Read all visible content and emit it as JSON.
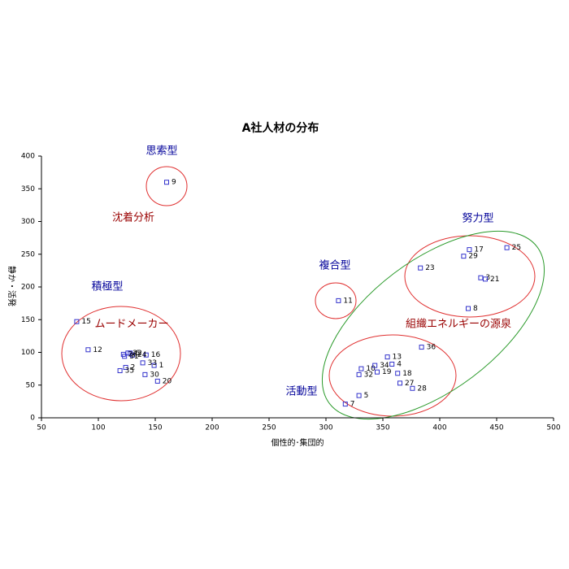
{
  "chart_data": {
    "type": "scatter",
    "title": "A社人材の分布",
    "x_label": "個性的･集団的",
    "y_label": "静か・活発",
    "xlim": [
      50,
      500
    ],
    "xticks": [
      50,
      100,
      150,
      200,
      250,
      300,
      350,
      400,
      450,
      500
    ],
    "ylim": [
      0,
      400
    ],
    "yticks": [
      0,
      50,
      100,
      150,
      200,
      250,
      300,
      350,
      400
    ],
    "color": "#3333cc",
    "labels": [
      "1",
      "2",
      "3",
      "4",
      "5",
      "6",
      "7",
      "8",
      "9",
      "10",
      "11",
      "12",
      "13",
      "15",
      "16",
      "17",
      "18",
      "19",
      "20",
      "21",
      "22",
      "23",
      "24",
      "25",
      "26",
      "27",
      "28",
      "29",
      "30",
      "31",
      "32",
      "33",
      "34",
      "35",
      "36"
    ],
    "x": [
      149,
      124,
      436,
      358,
      329,
      128,
      317,
      425,
      160,
      331,
      311,
      91,
      354,
      81,
      142,
      426,
      363,
      345,
      152,
      440,
      126,
      383,
      130,
      459,
      122,
      365,
      376,
      421,
      141,
      123,
      329,
      139,
      343,
      119,
      384
    ],
    "y": [
      80,
      77,
      214,
      82,
      34,
      99,
      21,
      167,
      360,
      75,
      179,
      104,
      93,
      147,
      96,
      257,
      68,
      70,
      56,
      212,
      99,
      229,
      96,
      260,
      97,
      53,
      45,
      247,
      66,
      94,
      66,
      84,
      80,
      72,
      108
    ],
    "annotations": [
      {
        "text": "思索型",
        "color": "#000099"
      },
      {
        "text": "沈着分析",
        "color": "#990000"
      },
      {
        "text": "積極型",
        "color": "#000099"
      },
      {
        "text": "ムードメーカー",
        "color": "#990000"
      },
      {
        "text": "複合型",
        "color": "#000099"
      },
      {
        "text": "努力型",
        "color": "#000099"
      },
      {
        "text": "組織エネルギーの源泉",
        "color": "#990000"
      },
      {
        "text": "活動型",
        "color": "#000099"
      }
    ]
  }
}
